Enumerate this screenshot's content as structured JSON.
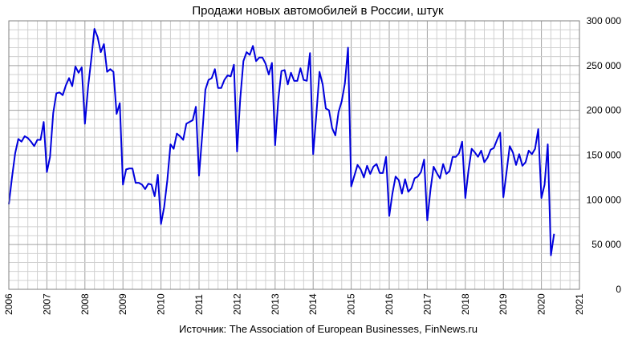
{
  "chart_data": {
    "type": "line",
    "title": "Продажи новых автомобилей в России, штук",
    "source": "Источник: The Association of European Businesses, FinNews.ru",
    "xlabel": "",
    "ylabel": "",
    "x_start": "2006-01",
    "x_step": "month",
    "xlim": [
      2006,
      2021
    ],
    "ylim": [
      0,
      300000
    ],
    "grid": true,
    "colors": {
      "line": "#0000dd",
      "grid_major": "#a0a0a0",
      "grid_minor": "#d0d0d0"
    },
    "x_ticks": [
      "2006",
      "2007",
      "2008",
      "2009",
      "2010",
      "2011",
      "2012",
      "2013",
      "2014",
      "2015",
      "2016",
      "2017",
      "2018",
      "2019",
      "2020",
      "2021"
    ],
    "y_ticks": [
      "0",
      "50 000",
      "100 000",
      "150 000",
      "200 000",
      "250 000",
      "300 000"
    ],
    "series": [
      {
        "values": [
          95000,
          125000,
          152000,
          168000,
          165000,
          171000,
          169000,
          165000,
          160000,
          167000,
          167000,
          187000,
          131000,
          148000,
          197000,
          219000,
          220000,
          217000,
          228000,
          236000,
          227000,
          249000,
          242000,
          248000,
          185000,
          226000,
          257000,
          291000,
          282000,
          265000,
          274000,
          243000,
          246000,
          243000,
          196000,
          208000,
          117000,
          134000,
          135000,
          135000,
          119000,
          119000,
          117000,
          112000,
          118000,
          117000,
          104000,
          128000,
          73000,
          92000,
          122000,
          162000,
          157000,
          174000,
          171000,
          167000,
          185000,
          187000,
          189000,
          204000,
          127000,
          172000,
          223000,
          234000,
          236000,
          246000,
          225000,
          225000,
          234000,
          239000,
          238000,
          251000,
          154000,
          213000,
          255000,
          265000,
          262000,
          272000,
          255000,
          259000,
          259000,
          252000,
          240000,
          253000,
          161000,
          212000,
          244000,
          245000,
          229000,
          242000,
          233000,
          233000,
          247000,
          234000,
          233000,
          264000,
          151000,
          195000,
          243000,
          229000,
          202000,
          200000,
          180000,
          172000,
          198000,
          210000,
          230000,
          270000,
          115000,
          127000,
          139000,
          134000,
          125000,
          138000,
          129000,
          137000,
          140000,
          130000,
          130000,
          148000,
          82000,
          107000,
          126000,
          122000,
          107000,
          123000,
          109000,
          113000,
          124000,
          126000,
          131000,
          145000,
          77000,
          111000,
          137000,
          130000,
          124000,
          140000,
          129000,
          132000,
          148000,
          148000,
          152000,
          165000,
          102000,
          133000,
          157000,
          153000,
          148000,
          155000,
          142000,
          147000,
          156000,
          158000,
          167000,
          175000,
          103000,
          131000,
          160000,
          153000,
          139000,
          151000,
          138000,
          142000,
          155000,
          151000,
          157000,
          179000,
          102000,
          117000,
          162000,
          38000,
          62000
        ]
      }
    ]
  }
}
